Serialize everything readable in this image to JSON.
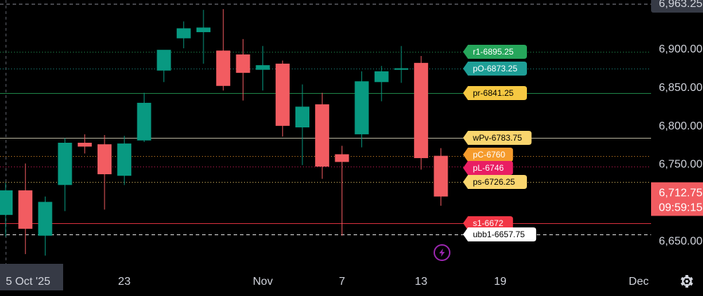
{
  "chart_data": {
    "type": "candlestick",
    "title": "",
    "xlabel": "",
    "ylabel": "",
    "ylim": [
      6625,
      6970
    ],
    "y_ticks": [
      {
        "value": 6900,
        "label": "6,900.00"
      },
      {
        "value": 6850,
        "label": "6,850.00"
      },
      {
        "value": 6800,
        "label": "6,800.00"
      },
      {
        "value": 6750,
        "label": "6,750.00"
      },
      {
        "value": 6700,
        "label": "6,700.00"
      },
      {
        "value": 6650,
        "label": "6,650.00"
      }
    ],
    "x_ticks": [
      {
        "bar": -0.3,
        "label": "5 Oct '25",
        "highlight": true
      },
      {
        "bar": 6,
        "label": "23"
      },
      {
        "bar": 13,
        "label": "Nov"
      },
      {
        "bar": 17,
        "label": "7"
      },
      {
        "bar": 21,
        "label": "13"
      },
      {
        "bar": 25,
        "label": "19"
      },
      {
        "bar": 32,
        "label": "Dec"
      }
    ],
    "top_partial_label": "6,963.25",
    "candles": [
      {
        "o": 6683,
        "h": 6725,
        "l": 6655,
        "c": 6715
      },
      {
        "o": 6715,
        "h": 6750,
        "l": 6632,
        "c": 6665
      },
      {
        "o": 6656,
        "h": 6707,
        "l": 6630,
        "c": 6700
      },
      {
        "o": 6722,
        "h": 6783,
        "l": 6688,
        "c": 6777
      },
      {
        "o": 6777,
        "h": 6788,
        "l": 6763,
        "c": 6772
      },
      {
        "o": 6775,
        "h": 6787,
        "l": 6690,
        "c": 6736
      },
      {
        "o": 6734,
        "h": 6786,
        "l": 6722,
        "c": 6776
      },
      {
        "o": 6780,
        "h": 6842,
        "l": 6778,
        "c": 6829
      },
      {
        "o": 6871,
        "h": 6897,
        "l": 6856,
        "c": 6898
      },
      {
        "o": 6913,
        "h": 6935,
        "l": 6900,
        "c": 6926
      },
      {
        "o": 6921,
        "h": 6950,
        "l": 6880,
        "c": 6927
      },
      {
        "o": 6897,
        "h": 6951,
        "l": 6845,
        "c": 6851
      },
      {
        "o": 6892,
        "h": 6912,
        "l": 6832,
        "c": 6868
      },
      {
        "o": 6872,
        "h": 6903,
        "l": 6845,
        "c": 6878
      },
      {
        "o": 6880,
        "h": 6884,
        "l": 6785,
        "c": 6799
      },
      {
        "o": 6797,
        "h": 6853,
        "l": 6748,
        "c": 6824
      },
      {
        "o": 6827,
        "h": 6842,
        "l": 6730,
        "c": 6746
      },
      {
        "o": 6762,
        "h": 6773,
        "l": 6656,
        "c": 6752
      },
      {
        "o": 6788,
        "h": 6870,
        "l": 6771,
        "c": 6857
      },
      {
        "o": 6856,
        "h": 6877,
        "l": 6831,
        "c": 6870
      },
      {
        "o": 6872,
        "h": 6903,
        "l": 6855,
        "c": 6874
      },
      {
        "o": 6881,
        "h": 6890,
        "l": 6742,
        "c": 6757
      },
      {
        "o": 6760,
        "h": 6770,
        "l": 6695,
        "c": 6707
      }
    ],
    "levels": [
      {
        "label": "r1-6895.25",
        "value": 6895.25,
        "color": "#26a65b",
        "line_style": "dotted",
        "text_color": "#ffffff"
      },
      {
        "label": "pO-6873.25",
        "value": 6873.25,
        "color": "#1e9e96",
        "line_style": "dotted",
        "text_color": "#ffffff"
      },
      {
        "label": "pr-6841.25",
        "value": 6841.25,
        "color": "#f5c842",
        "line_style": "solid_green",
        "text_color": "#000000"
      },
      {
        "label": "wPv-6783.75",
        "value": 6783.75,
        "color": "#f9d56e",
        "line_style": "solid_light",
        "text_color": "#000000"
      },
      {
        "label": "pC-6760",
        "value": 6760,
        "color": "#f59b2c",
        "line_style": "dotted",
        "text_color": "#ffffff"
      },
      {
        "label": "pL-6746",
        "value": 6746,
        "color": "#e91e63",
        "line_style": "dotted",
        "text_color": "#ffffff"
      },
      {
        "label": "ps-6726.25",
        "value": 6726.25,
        "color": "#f9d56e",
        "line_style": "dotted",
        "text_color": "#000000"
      },
      {
        "label": "s1-6672",
        "value": 6672,
        "color": "#f23645",
        "line_style": "solid_red",
        "text_color": "#ffffff"
      },
      {
        "label": "ubb1-6657.75",
        "value": 6657.75,
        "color": "#ffffff",
        "line_style": "dashed",
        "text_color": "#000000"
      }
    ],
    "current_price": {
      "value": 6712.75,
      "label": "6,712.75",
      "countdown": "09:59:15"
    },
    "colors": {
      "up": "#089981",
      "down": "#f25c61",
      "axis_text": "#d1d4dc",
      "background": "#000000",
      "crosshair": "#b2b5be",
      "price_badge": "#f25c61",
      "lightning": "#9c27b0"
    },
    "icons": {
      "settings": "gear-icon",
      "alert": "lightning-icon"
    }
  }
}
